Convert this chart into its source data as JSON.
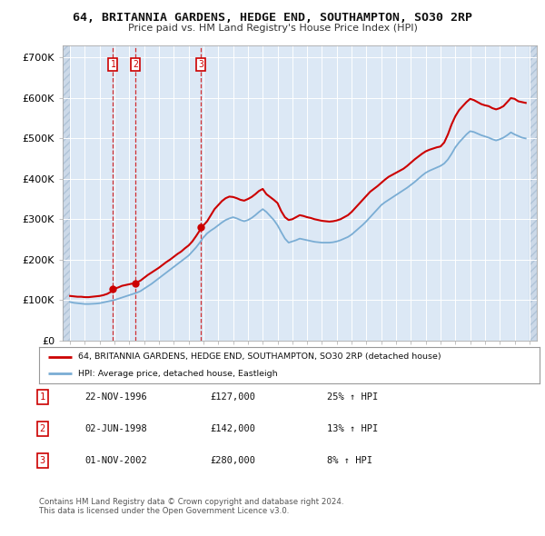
{
  "title": "64, BRITANNIA GARDENS, HEDGE END, SOUTHAMPTON, SO30 2RP",
  "subtitle": "Price paid vs. HM Land Registry's House Price Index (HPI)",
  "xlim": [
    1993.5,
    2025.5
  ],
  "ylim": [
    0,
    730000
  ],
  "yticks": [
    0,
    100000,
    200000,
    300000,
    400000,
    500000,
    600000,
    700000
  ],
  "ytick_labels": [
    "£0",
    "£100K",
    "£200K",
    "£300K",
    "£400K",
    "£500K",
    "£600K",
    "£700K"
  ],
  "data_xlim_start": 1994.0,
  "data_xlim_end": 2025.0,
  "sale_dates": [
    1996.896,
    1998.414,
    2002.836
  ],
  "sale_prices": [
    127000,
    142000,
    280000
  ],
  "sale_labels": [
    "1",
    "2",
    "3"
  ],
  "vline_dates": [
    1996.896,
    1998.414,
    2002.836
  ],
  "property_color": "#cc0000",
  "hpi_color": "#7aadd4",
  "plot_bg": "#dce8f5",
  "hatch_color": "#c0cfe0",
  "legend_label_property": "64, BRITANNIA GARDENS, HEDGE END, SOUTHAMPTON, SO30 2RP (detached house)",
  "legend_label_hpi": "HPI: Average price, detached house, Eastleigh",
  "table_rows": [
    [
      "1",
      "22-NOV-1996",
      "£127,000",
      "25% ↑ HPI"
    ],
    [
      "2",
      "02-JUN-1998",
      "£142,000",
      "13% ↑ HPI"
    ],
    [
      "3",
      "01-NOV-2002",
      "£280,000",
      "8% ↑ HPI"
    ]
  ],
  "footer": "Contains HM Land Registry data © Crown copyright and database right 2024.\nThis data is licensed under the Open Government Licence v3.0.",
  "property_data_x": [
    1994.0,
    1994.25,
    1994.5,
    1994.75,
    1995.0,
    1995.25,
    1995.5,
    1995.75,
    1996.0,
    1996.25,
    1996.5,
    1996.75,
    1996.896,
    1997.0,
    1997.25,
    1997.5,
    1997.75,
    1998.0,
    1998.25,
    1998.414,
    1998.75,
    1999.0,
    1999.25,
    1999.5,
    1999.75,
    2000.0,
    2000.25,
    2000.5,
    2000.75,
    2001.0,
    2001.25,
    2001.5,
    2001.75,
    2002.0,
    2002.25,
    2002.5,
    2002.75,
    2002.836,
    2003.0,
    2003.25,
    2003.5,
    2003.75,
    2004.0,
    2004.25,
    2004.5,
    2004.75,
    2005.0,
    2005.25,
    2005.5,
    2005.75,
    2006.0,
    2006.25,
    2006.5,
    2006.75,
    2007.0,
    2007.25,
    2007.5,
    2007.75,
    2008.0,
    2008.25,
    2008.5,
    2008.75,
    2009.0,
    2009.25,
    2009.5,
    2009.75,
    2010.0,
    2010.25,
    2010.5,
    2010.75,
    2011.0,
    2011.25,
    2011.5,
    2011.75,
    2012.0,
    2012.25,
    2012.5,
    2012.75,
    2013.0,
    2013.25,
    2013.5,
    2013.75,
    2014.0,
    2014.25,
    2014.5,
    2014.75,
    2015.0,
    2015.25,
    2015.5,
    2015.75,
    2016.0,
    2016.25,
    2016.5,
    2016.75,
    2017.0,
    2017.25,
    2017.5,
    2017.75,
    2018.0,
    2018.25,
    2018.5,
    2018.75,
    2019.0,
    2019.25,
    2019.5,
    2019.75,
    2020.0,
    2020.25,
    2020.5,
    2020.75,
    2021.0,
    2021.25,
    2021.5,
    2021.75,
    2022.0,
    2022.25,
    2022.5,
    2022.75,
    2023.0,
    2023.25,
    2023.5,
    2023.75,
    2024.0,
    2024.25,
    2024.5,
    2024.75
  ],
  "property_data_y": [
    110000,
    109000,
    108000,
    108000,
    107000,
    107000,
    108000,
    109000,
    110000,
    112000,
    115000,
    120000,
    127000,
    128000,
    131000,
    135000,
    137000,
    139000,
    141000,
    142000,
    148000,
    155000,
    162000,
    168000,
    174000,
    180000,
    187000,
    194000,
    200000,
    207000,
    214000,
    220000,
    228000,
    235000,
    245000,
    258000,
    272000,
    280000,
    285000,
    295000,
    310000,
    325000,
    335000,
    345000,
    352000,
    356000,
    355000,
    352000,
    348000,
    346000,
    350000,
    355000,
    362000,
    370000,
    375000,
    362000,
    355000,
    348000,
    340000,
    320000,
    305000,
    298000,
    300000,
    305000,
    310000,
    308000,
    305000,
    303000,
    300000,
    298000,
    296000,
    295000,
    294000,
    295000,
    297000,
    300000,
    305000,
    310000,
    318000,
    328000,
    338000,
    348000,
    358000,
    368000,
    375000,
    382000,
    390000,
    398000,
    405000,
    410000,
    415000,
    420000,
    425000,
    432000,
    440000,
    448000,
    455000,
    462000,
    468000,
    472000,
    475000,
    478000,
    480000,
    490000,
    510000,
    535000,
    555000,
    570000,
    580000,
    590000,
    598000,
    595000,
    590000,
    585000,
    582000,
    580000,
    575000,
    572000,
    575000,
    580000,
    590000,
    600000,
    598000,
    592000,
    590000,
    588000
  ],
  "hpi_data_x": [
    1994.0,
    1994.25,
    1994.5,
    1994.75,
    1995.0,
    1995.25,
    1995.5,
    1995.75,
    1996.0,
    1996.25,
    1996.5,
    1996.75,
    1997.0,
    1997.25,
    1997.5,
    1997.75,
    1998.0,
    1998.25,
    1998.5,
    1998.75,
    1999.0,
    1999.25,
    1999.5,
    1999.75,
    2000.0,
    2000.25,
    2000.5,
    2000.75,
    2001.0,
    2001.25,
    2001.5,
    2001.75,
    2002.0,
    2002.25,
    2002.5,
    2002.75,
    2003.0,
    2003.25,
    2003.5,
    2003.75,
    2004.0,
    2004.25,
    2004.5,
    2004.75,
    2005.0,
    2005.25,
    2005.5,
    2005.75,
    2006.0,
    2006.25,
    2006.5,
    2006.75,
    2007.0,
    2007.25,
    2007.5,
    2007.75,
    2008.0,
    2008.25,
    2008.5,
    2008.75,
    2009.0,
    2009.25,
    2009.5,
    2009.75,
    2010.0,
    2010.25,
    2010.5,
    2010.75,
    2011.0,
    2011.25,
    2011.5,
    2011.75,
    2012.0,
    2012.25,
    2012.5,
    2012.75,
    2013.0,
    2013.25,
    2013.5,
    2013.75,
    2014.0,
    2014.25,
    2014.5,
    2014.75,
    2015.0,
    2015.25,
    2015.5,
    2015.75,
    2016.0,
    2016.25,
    2016.5,
    2016.75,
    2017.0,
    2017.25,
    2017.5,
    2017.75,
    2018.0,
    2018.25,
    2018.5,
    2018.75,
    2019.0,
    2019.25,
    2019.5,
    2019.75,
    2020.0,
    2020.25,
    2020.5,
    2020.75,
    2021.0,
    2021.25,
    2021.5,
    2021.75,
    2022.0,
    2022.25,
    2022.5,
    2022.75,
    2023.0,
    2023.25,
    2023.5,
    2023.75,
    2024.0,
    2024.25,
    2024.5,
    2024.75
  ],
  "hpi_data_y": [
    95000,
    93000,
    92000,
    91000,
    90000,
    90000,
    90500,
    91000,
    92000,
    94000,
    96000,
    98000,
    100000,
    103000,
    106000,
    109000,
    112000,
    115000,
    118000,
    122000,
    128000,
    134000,
    140000,
    147000,
    154000,
    161000,
    168000,
    175000,
    182000,
    189000,
    196000,
    203000,
    210000,
    220000,
    230000,
    242000,
    255000,
    265000,
    272000,
    278000,
    285000,
    292000,
    298000,
    302000,
    305000,
    302000,
    298000,
    295000,
    298000,
    303000,
    310000,
    318000,
    325000,
    318000,
    308000,
    298000,
    285000,
    268000,
    252000,
    242000,
    245000,
    248000,
    252000,
    250000,
    248000,
    246000,
    244000,
    243000,
    242000,
    242000,
    242000,
    243000,
    245000,
    248000,
    252000,
    256000,
    262000,
    270000,
    278000,
    286000,
    295000,
    305000,
    315000,
    325000,
    335000,
    342000,
    348000,
    354000,
    360000,
    366000,
    372000,
    378000,
    385000,
    392000,
    400000,
    408000,
    415000,
    420000,
    424000,
    428000,
    432000,
    438000,
    448000,
    462000,
    478000,
    490000,
    500000,
    510000,
    518000,
    516000,
    512000,
    508000,
    505000,
    502000,
    498000,
    495000,
    498000,
    502000,
    508000,
    515000,
    510000,
    506000,
    502000,
    500000
  ]
}
